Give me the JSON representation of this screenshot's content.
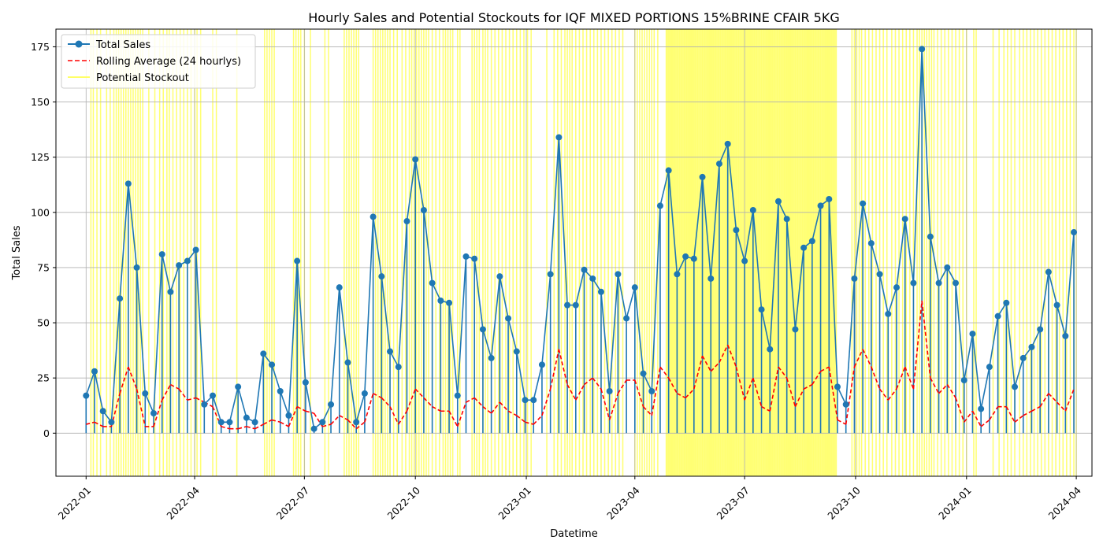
{
  "chart_data": {
    "type": "line",
    "title": "Hourly Sales and Potential Stockouts for IQF MIXED PORTIONS 15%BRINE CFAIR 5KG",
    "xlabel": "Datetime",
    "ylabel": "Total Sales",
    "xlim": [
      "2021-12-07",
      "2024-04-14"
    ],
    "ylim": [
      -19.5,
      183
    ],
    "x_ticks": [
      "2022-01",
      "2022-04",
      "2022-07",
      "2022-10",
      "2023-01",
      "2023-04",
      "2023-07",
      "2023-10",
      "2024-01",
      "2024-04"
    ],
    "y_ticks": [
      0,
      25,
      50,
      75,
      100,
      125,
      150,
      175
    ],
    "grid": true,
    "legend": {
      "position": "top-left"
    },
    "series": [
      {
        "name": "Total Sales",
        "style": "line-with-markers",
        "color": "#1f77b4",
        "marker": "circle",
        "x": [
          "2022-01-01",
          "2022-01-08",
          "2022-01-15",
          "2022-01-22",
          "2022-01-29",
          "2022-02-05",
          "2022-02-12",
          "2022-02-19",
          "2022-02-26",
          "2022-03-05",
          "2022-03-12",
          "2022-03-19",
          "2022-03-26",
          "2022-04-02",
          "2022-04-09",
          "2022-04-16",
          "2022-04-23",
          "2022-04-30",
          "2022-05-07",
          "2022-05-14",
          "2022-05-21",
          "2022-05-28",
          "2022-06-04",
          "2022-06-11",
          "2022-06-18",
          "2022-06-25",
          "2022-07-02",
          "2022-07-09",
          "2022-07-16",
          "2022-07-23",
          "2022-07-30",
          "2022-08-06",
          "2022-08-13",
          "2022-08-20",
          "2022-08-27",
          "2022-09-03",
          "2022-09-10",
          "2022-09-17",
          "2022-09-24",
          "2022-10-01",
          "2022-10-08",
          "2022-10-15",
          "2022-10-22",
          "2022-10-29",
          "2022-11-05",
          "2022-11-12",
          "2022-11-19",
          "2022-11-26",
          "2022-12-03",
          "2022-12-10",
          "2022-12-17",
          "2022-12-24",
          "2022-12-31",
          "2023-01-07",
          "2023-01-14",
          "2023-01-21",
          "2023-01-28",
          "2023-02-04",
          "2023-02-11",
          "2023-02-18",
          "2023-02-25",
          "2023-03-04",
          "2023-03-11",
          "2023-03-18",
          "2023-03-25",
          "2023-04-01",
          "2023-04-08",
          "2023-04-15",
          "2023-04-22",
          "2023-04-29",
          "2023-05-06",
          "2023-05-13",
          "2023-05-20",
          "2023-05-27",
          "2023-06-03",
          "2023-06-10",
          "2023-06-17",
          "2023-06-24",
          "2023-07-01",
          "2023-07-08",
          "2023-07-15",
          "2023-07-22",
          "2023-07-29",
          "2023-08-05",
          "2023-08-12",
          "2023-08-19",
          "2023-08-26",
          "2023-09-02",
          "2023-09-09",
          "2023-09-16",
          "2023-09-23",
          "2023-09-30",
          "2023-10-07",
          "2023-10-14",
          "2023-10-21",
          "2023-10-28",
          "2023-11-04",
          "2023-11-11",
          "2023-11-18",
          "2023-11-25",
          "2023-12-02",
          "2023-12-09",
          "2023-12-16",
          "2023-12-23",
          "2023-12-30",
          "2024-01-06",
          "2024-01-13",
          "2024-01-20",
          "2024-01-27",
          "2024-02-03",
          "2024-02-10",
          "2024-02-17",
          "2024-02-24",
          "2024-03-02",
          "2024-03-09",
          "2024-03-16",
          "2024-03-23",
          "2024-03-30"
        ],
        "values": [
          17,
          28,
          10,
          5,
          61,
          113,
          75,
          18,
          9,
          81,
          64,
          76,
          78,
          83,
          13,
          17,
          5,
          5,
          21,
          7,
          5,
          36,
          31,
          19,
          8,
          78,
          23,
          2,
          5,
          13,
          66,
          32,
          5,
          18,
          98,
          71,
          37,
          30,
          96,
          124,
          101,
          68,
          60,
          59,
          17,
          80,
          79,
          47,
          34,
          71,
          52,
          37,
          15,
          15,
          31,
          72,
          134,
          58,
          58,
          74,
          70,
          64,
          19,
          72,
          52,
          66,
          27,
          19,
          103,
          119,
          72,
          80,
          79,
          116,
          70,
          122,
          131,
          92,
          78,
          101,
          56,
          38,
          105,
          97,
          47,
          84,
          87,
          103,
          106,
          21,
          13,
          70,
          104,
          86,
          72,
          54,
          66,
          97,
          68,
          174,
          89,
          68,
          75,
          68,
          24,
          45,
          11,
          30,
          53,
          59,
          21,
          34,
          39,
          47,
          73,
          58,
          44,
          91
        ]
      },
      {
        "name": "Rolling Average (24 hourlys)",
        "style": "dashed",
        "color": "#ff0000",
        "x": [
          "2022-01-01",
          "2022-01-08",
          "2022-01-15",
          "2022-01-22",
          "2022-01-29",
          "2022-02-05",
          "2022-02-12",
          "2022-02-19",
          "2022-02-26",
          "2022-03-05",
          "2022-03-12",
          "2022-03-19",
          "2022-03-26",
          "2022-04-02",
          "2022-04-09",
          "2022-04-16",
          "2022-04-23",
          "2022-04-30",
          "2022-05-07",
          "2022-05-14",
          "2022-05-21",
          "2022-05-28",
          "2022-06-04",
          "2022-06-11",
          "2022-06-18",
          "2022-06-25",
          "2022-07-02",
          "2022-07-09",
          "2022-07-16",
          "2022-07-23",
          "2022-07-30",
          "2022-08-06",
          "2022-08-13",
          "2022-08-20",
          "2022-08-27",
          "2022-09-03",
          "2022-09-10",
          "2022-09-17",
          "2022-09-24",
          "2022-10-01",
          "2022-10-08",
          "2022-10-15",
          "2022-10-22",
          "2022-10-29",
          "2022-11-05",
          "2022-11-12",
          "2022-11-19",
          "2022-11-26",
          "2022-12-03",
          "2022-12-10",
          "2022-12-17",
          "2022-12-24",
          "2022-12-31",
          "2023-01-07",
          "2023-01-14",
          "2023-01-21",
          "2023-01-28",
          "2023-02-04",
          "2023-02-11",
          "2023-02-18",
          "2023-02-25",
          "2023-03-04",
          "2023-03-11",
          "2023-03-18",
          "2023-03-25",
          "2023-04-01",
          "2023-04-08",
          "2023-04-15",
          "2023-04-22",
          "2023-04-29",
          "2023-05-06",
          "2023-05-13",
          "2023-05-20",
          "2023-05-27",
          "2023-06-03",
          "2023-06-10",
          "2023-06-17",
          "2023-06-24",
          "2023-07-01",
          "2023-07-08",
          "2023-07-15",
          "2023-07-22",
          "2023-07-29",
          "2023-08-05",
          "2023-08-12",
          "2023-08-19",
          "2023-08-26",
          "2023-09-02",
          "2023-09-09",
          "2023-09-16",
          "2023-09-23",
          "2023-09-30",
          "2023-10-07",
          "2023-10-14",
          "2023-10-21",
          "2023-10-28",
          "2023-11-04",
          "2023-11-11",
          "2023-11-18",
          "2023-11-25",
          "2023-12-02",
          "2023-12-09",
          "2023-12-16",
          "2023-12-23",
          "2023-12-30",
          "2024-01-06",
          "2024-01-13",
          "2024-01-20",
          "2024-01-27",
          "2024-02-03",
          "2024-02-10",
          "2024-02-17",
          "2024-02-24",
          "2024-03-02",
          "2024-03-09",
          "2024-03-16",
          "2024-03-23",
          "2024-03-30"
        ],
        "values": [
          4,
          5,
          3,
          3,
          18,
          30,
          20,
          3,
          3,
          15,
          22,
          20,
          15,
          16,
          14,
          12,
          3,
          2,
          2,
          3,
          2,
          4,
          6,
          5,
          3,
          12,
          10,
          9,
          3,
          4,
          8,
          6,
          2,
          5,
          18,
          16,
          12,
          4,
          10,
          20,
          16,
          12,
          10,
          10,
          3,
          14,
          16,
          12,
          9,
          14,
          10,
          8,
          5,
          4,
          8,
          20,
          38,
          22,
          15,
          22,
          25,
          20,
          6,
          18,
          24,
          24,
          12,
          8,
          30,
          25,
          18,
          16,
          20,
          35,
          28,
          32,
          40,
          30,
          15,
          25,
          12,
          10,
          30,
          25,
          12,
          20,
          22,
          28,
          30,
          6,
          4,
          30,
          38,
          30,
          20,
          15,
          20,
          30,
          20,
          60,
          25,
          18,
          22,
          16,
          5,
          10,
          3,
          6,
          12,
          12,
          5,
          8,
          10,
          12,
          18,
          14,
          10,
          20
        ]
      }
    ],
    "stockout_bands": [
      "2022-01-05",
      "2022-01-07",
      "2022-01-10",
      "2022-01-13",
      "2022-01-18",
      "2022-01-21",
      "2022-01-24",
      "2022-01-26",
      "2022-01-28",
      "2022-01-30",
      "2022-02-01",
      "2022-02-03",
      "2022-02-05",
      "2022-02-07",
      "2022-02-09",
      "2022-02-11",
      "2022-02-13",
      "2022-02-15",
      "2022-02-17",
      "2022-02-22",
      "2022-02-27",
      "2022-03-03",
      "2022-03-06",
      "2022-03-09",
      "2022-03-11",
      "2022-03-14",
      "2022-03-17",
      "2022-03-20",
      "2022-03-23",
      "2022-03-26",
      "2022-03-29",
      "2022-04-01",
      "2022-04-03",
      "2022-04-06",
      "2022-04-16",
      "2022-04-19",
      "2022-05-06",
      "2022-05-29",
      "2022-05-31",
      "2022-06-02",
      "2022-06-04",
      "2022-06-06",
      "2022-06-22",
      "2022-06-24",
      "2022-06-26",
      "2022-06-28",
      "2022-07-01",
      "2022-07-06",
      "2022-07-18",
      "2022-07-21",
      "2022-08-03",
      "2022-08-05",
      "2022-08-07",
      "2022-08-09",
      "2022-08-11",
      "2022-08-13",
      "2022-08-15",
      "2022-08-27",
      "2022-08-29",
      "2022-08-31",
      "2022-09-02",
      "2022-09-04",
      "2022-09-06",
      "2022-09-08",
      "2022-09-10",
      "2022-09-13",
      "2022-09-16",
      "2022-09-20",
      "2022-09-23",
      "2022-09-26",
      "2022-09-28",
      "2022-09-30",
      "2022-10-02",
      "2022-10-04",
      "2022-10-06",
      "2022-10-08",
      "2022-10-10",
      "2022-10-12",
      "2022-10-15",
      "2022-10-18",
      "2022-10-21",
      "2022-10-24",
      "2022-10-26",
      "2022-10-28",
      "2022-10-30",
      "2022-11-01",
      "2022-11-05",
      "2022-11-07",
      "2022-11-17",
      "2022-11-19",
      "2022-11-21",
      "2022-11-23",
      "2022-11-26",
      "2022-11-28",
      "2022-11-30",
      "2022-12-03",
      "2022-12-06",
      "2022-12-09",
      "2022-12-12",
      "2022-12-15",
      "2022-12-18",
      "2022-12-21",
      "2022-12-24",
      "2022-12-27",
      "2022-12-30",
      "2023-01-02",
      "2023-01-05",
      "2023-01-18",
      "2023-01-24",
      "2023-01-27",
      "2023-01-30",
      "2023-02-02",
      "2023-02-04",
      "2023-02-06",
      "2023-02-08",
      "2023-02-11",
      "2023-02-14",
      "2023-02-17",
      "2023-02-20",
      "2023-02-23",
      "2023-02-26",
      "2023-03-01",
      "2023-03-04",
      "2023-03-07",
      "2023-03-10",
      "2023-03-13",
      "2023-03-16",
      "2023-03-19",
      "2023-03-22",
      "2023-04-01",
      "2023-04-03",
      "2023-04-05",
      "2023-04-07",
      "2023-04-09",
      "2023-04-11",
      "2023-04-13",
      "2023-04-15",
      "2023-04-17",
      "2023-04-20",
      "2023-04-27",
      "2023-04-28",
      "2023-04-29",
      "2023-04-30",
      "2023-05-01",
      "2023-05-02",
      "2023-05-03",
      "2023-05-04",
      "2023-05-05",
      "2023-05-06",
      "2023-05-07",
      "2023-05-08",
      "2023-05-09",
      "2023-05-10",
      "2023-05-11",
      "2023-05-12",
      "2023-05-13",
      "2023-05-14",
      "2023-05-15",
      "2023-05-16",
      "2023-05-17",
      "2023-05-18",
      "2023-05-19",
      "2023-05-20",
      "2023-05-21",
      "2023-05-22",
      "2023-05-23",
      "2023-05-24",
      "2023-05-25",
      "2023-05-26",
      "2023-05-27",
      "2023-05-28",
      "2023-05-29",
      "2023-05-30",
      "2023-05-31",
      "2023-06-01",
      "2023-06-02",
      "2023-06-03",
      "2023-06-04",
      "2023-06-05",
      "2023-06-06",
      "2023-06-07",
      "2023-06-08",
      "2023-06-09",
      "2023-06-10",
      "2023-06-11",
      "2023-06-12",
      "2023-06-13",
      "2023-06-14",
      "2023-06-15",
      "2023-06-16",
      "2023-06-17",
      "2023-06-18",
      "2023-06-19",
      "2023-06-20",
      "2023-06-21",
      "2023-06-22",
      "2023-06-23",
      "2023-06-24",
      "2023-06-25",
      "2023-06-26",
      "2023-06-27",
      "2023-06-28",
      "2023-06-29",
      "2023-06-30",
      "2023-07-01",
      "2023-07-02",
      "2023-07-03",
      "2023-07-04",
      "2023-07-05",
      "2023-07-06",
      "2023-07-07",
      "2023-07-08",
      "2023-07-09",
      "2023-07-10",
      "2023-07-11",
      "2023-07-12",
      "2023-07-13",
      "2023-07-14",
      "2023-07-15",
      "2023-07-16",
      "2023-07-17",
      "2023-07-18",
      "2023-07-19",
      "2023-07-20",
      "2023-07-21",
      "2023-07-22",
      "2023-07-23",
      "2023-07-24",
      "2023-07-25",
      "2023-07-26",
      "2023-07-27",
      "2023-07-28",
      "2023-07-29",
      "2023-07-30",
      "2023-07-31",
      "2023-08-01",
      "2023-08-02",
      "2023-08-03",
      "2023-08-04",
      "2023-08-05",
      "2023-08-06",
      "2023-08-07",
      "2023-08-08",
      "2023-08-09",
      "2023-08-10",
      "2023-08-11",
      "2023-08-12",
      "2023-08-13",
      "2023-08-14",
      "2023-08-15",
      "2023-08-16",
      "2023-08-17",
      "2023-08-18",
      "2023-08-19",
      "2023-08-20",
      "2023-08-21",
      "2023-08-22",
      "2023-08-23",
      "2023-08-24",
      "2023-08-25",
      "2023-08-26",
      "2023-08-27",
      "2023-08-28",
      "2023-08-29",
      "2023-08-30",
      "2023-08-31",
      "2023-09-01",
      "2023-09-02",
      "2023-09-03",
      "2023-09-04",
      "2023-09-05",
      "2023-09-06",
      "2023-09-07",
      "2023-09-08",
      "2023-09-09",
      "2023-09-10",
      "2023-09-11",
      "2023-09-12",
      "2023-09-13",
      "2023-09-14",
      "2023-09-15",
      "2023-09-28",
      "2023-09-30",
      "2023-10-02",
      "2023-10-04",
      "2023-10-06",
      "2023-10-09",
      "2023-10-12",
      "2023-10-15",
      "2023-10-18",
      "2023-10-21",
      "2023-10-24",
      "2023-10-27",
      "2023-10-31",
      "2023-11-03",
      "2023-11-06",
      "2023-11-09",
      "2023-11-12",
      "2023-11-15",
      "2023-11-18",
      "2023-11-21",
      "2023-11-23",
      "2023-11-25",
      "2023-11-27",
      "2023-11-29",
      "2023-12-01",
      "2023-12-03",
      "2023-12-05",
      "2023-12-08",
      "2023-12-11",
      "2023-12-14",
      "2023-12-17",
      "2023-12-20",
      "2023-12-23",
      "2023-12-26",
      "2023-12-29",
      "2024-01-01",
      "2024-01-07",
      "2024-01-09",
      "2024-01-23",
      "2024-01-28",
      "2024-02-01",
      "2024-02-04",
      "2024-02-07",
      "2024-02-10",
      "2024-02-14",
      "2024-02-17",
      "2024-02-20",
      "2024-02-23",
      "2024-02-26",
      "2024-02-29",
      "2024-03-03",
      "2024-03-06",
      "2024-03-09",
      "2024-03-12",
      "2024-03-15",
      "2024-03-18",
      "2024-03-21",
      "2024-03-24",
      "2024-03-27",
      "2024-03-30",
      "2024-04-01"
    ]
  }
}
